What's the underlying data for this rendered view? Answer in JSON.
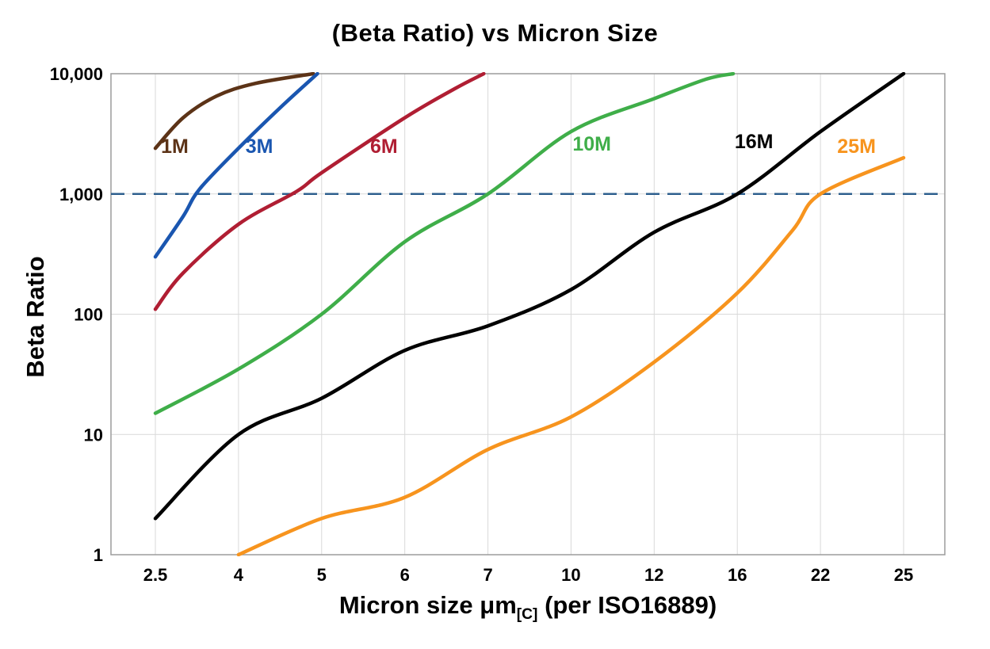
{
  "title": "(Beta Ratio) vs Micron Size",
  "chart_data": {
    "type": "line",
    "title": "(Beta Ratio) vs Micron Size",
    "ylabel": "Beta Ratio",
    "xlabel_parts": {
      "main": "Micron size μm",
      "subscript": "[C]",
      "suffix": " (per ISO16889)"
    },
    "y_scale": "log",
    "ylim": [
      1,
      10000
    ],
    "y_ticks": [
      "1",
      "10",
      "100",
      "1,000",
      "10,000"
    ],
    "x_categories": [
      2.5,
      4,
      5,
      6,
      7,
      10,
      12,
      16,
      22,
      25
    ],
    "grid": true,
    "legend_position": "inline-labels",
    "reference_line": {
      "beta": 1000,
      "color": "#2e5f8e",
      "style": "dashed"
    },
    "series": [
      {
        "name": "1M",
        "color": "#5c3317",
        "label_at": {
          "micron": 2.85,
          "beta": 2200
        },
        "points": [
          [
            2.5,
            2400
          ],
          [
            3,
            4300
          ],
          [
            3.6,
            6500
          ],
          [
            4.2,
            8300
          ],
          [
            4.9,
            10000
          ]
        ]
      },
      {
        "name": "3M",
        "color": "#1a56b0",
        "label_at": {
          "micron": 4.25,
          "beta": 2200
        },
        "points": [
          [
            2.5,
            300
          ],
          [
            3,
            650
          ],
          [
            3.3,
            1100
          ],
          [
            4,
            2400
          ],
          [
            4.5,
            5200
          ],
          [
            4.95,
            10000
          ]
        ]
      },
      {
        "name": "6M",
        "color": "#b01e33",
        "label_at": {
          "micron": 5.75,
          "beta": 2200
        },
        "points": [
          [
            2.5,
            110
          ],
          [
            3,
            220
          ],
          [
            4,
            560
          ],
          [
            4.7,
            1050
          ],
          [
            5,
            1500
          ],
          [
            6,
            4300
          ],
          [
            6.6,
            7500
          ],
          [
            6.95,
            10000
          ]
        ]
      },
      {
        "name": "10M",
        "color": "#3fae49",
        "label_at": {
          "micron": 10.5,
          "beta": 2300
        },
        "points": [
          [
            2.5,
            15
          ],
          [
            4,
            35
          ],
          [
            5,
            100
          ],
          [
            6,
            400
          ],
          [
            7,
            1000
          ],
          [
            10,
            3300
          ],
          [
            12,
            6200
          ],
          [
            14.5,
            9000
          ],
          [
            15.8,
            10000
          ]
        ]
      },
      {
        "name": "16M",
        "color": "#000000",
        "label_at": {
          "micron": 17.2,
          "beta": 2400
        },
        "points": [
          [
            2.5,
            2
          ],
          [
            4,
            10
          ],
          [
            5,
            20
          ],
          [
            6,
            50
          ],
          [
            7,
            80
          ],
          [
            10,
            160
          ],
          [
            12,
            480
          ],
          [
            16,
            1000
          ],
          [
            22,
            3300
          ],
          [
            25,
            10000
          ]
        ]
      },
      {
        "name": "25M",
        "color": "#f7941e",
        "label_at": {
          "micron": 23.3,
          "beta": 2200
        },
        "points": [
          [
            4,
            1
          ],
          [
            5,
            2
          ],
          [
            6,
            3
          ],
          [
            7,
            7.5
          ],
          [
            10,
            14
          ],
          [
            12,
            40
          ],
          [
            16,
            150
          ],
          [
            20,
            500
          ],
          [
            22,
            1000
          ],
          [
            25,
            2000
          ]
        ]
      }
    ]
  }
}
